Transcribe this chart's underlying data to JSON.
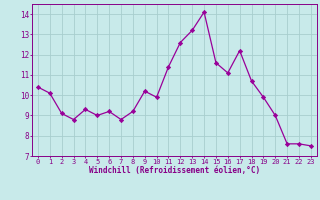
{
  "x": [
    0,
    1,
    2,
    3,
    4,
    5,
    6,
    7,
    8,
    9,
    10,
    11,
    12,
    13,
    14,
    15,
    16,
    17,
    18,
    19,
    20,
    21,
    22,
    23
  ],
  "y": [
    10.4,
    10.1,
    9.1,
    8.8,
    9.3,
    9.0,
    9.2,
    8.8,
    9.2,
    10.2,
    9.9,
    11.4,
    12.6,
    13.2,
    14.1,
    11.6,
    11.1,
    12.2,
    10.7,
    9.9,
    9.0,
    7.6,
    7.6,
    7.5
  ],
  "line_color": "#990099",
  "marker": "D",
  "marker_size": 2.2,
  "bg_color": "#c8eaea",
  "grid_color": "#a8cece",
  "xlabel": "Windchill (Refroidissement éolien,°C)",
  "ylim": [
    7,
    14.5
  ],
  "xlim": [
    -0.5,
    23.5
  ],
  "yticks": [
    7,
    8,
    9,
    10,
    11,
    12,
    13,
    14
  ],
  "xticks": [
    0,
    1,
    2,
    3,
    4,
    5,
    6,
    7,
    8,
    9,
    10,
    11,
    12,
    13,
    14,
    15,
    16,
    17,
    18,
    19,
    20,
    21,
    22,
    23
  ],
  "tick_color": "#880088",
  "label_color": "#880088",
  "spine_color": "#880088",
  "figsize": [
    3.2,
    2.0
  ],
  "dpi": 100
}
